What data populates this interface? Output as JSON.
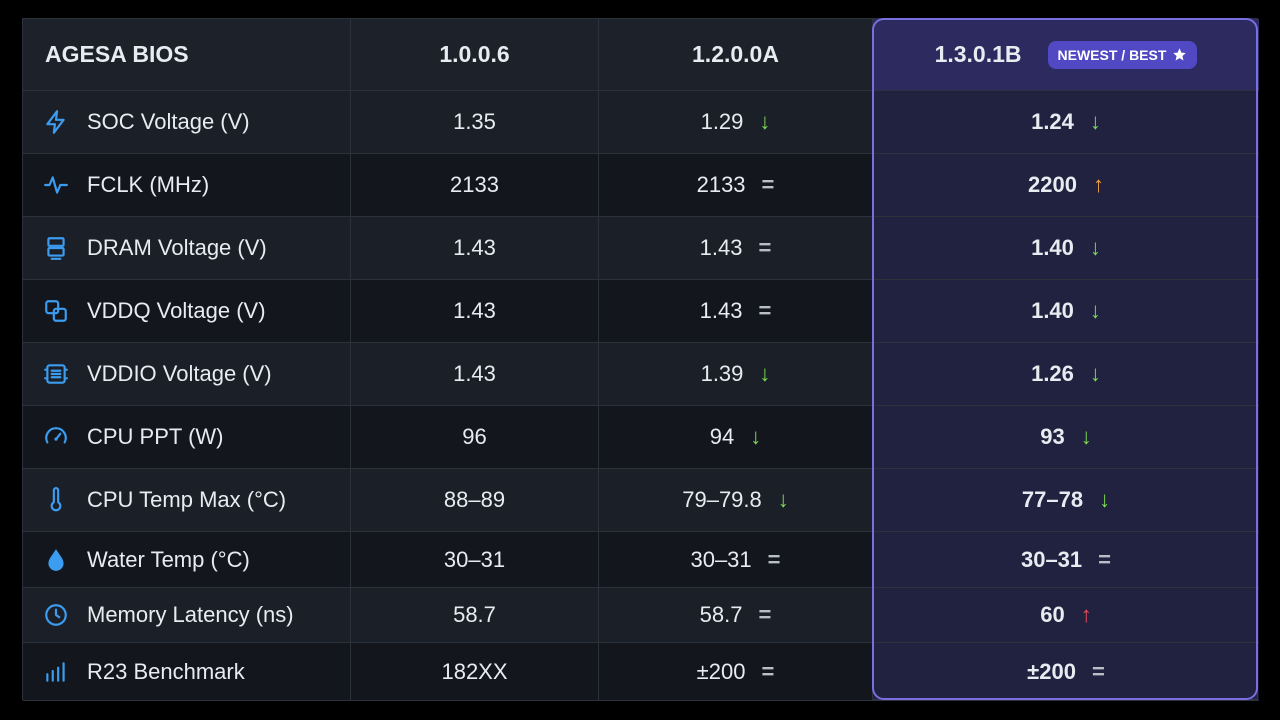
{
  "table": {
    "header": [
      "AGESA BIOS",
      "1.0.0.6",
      "1.2.0.0A",
      "1.3.0.1B"
    ],
    "badge": "NEWEST / BEST",
    "rows": [
      {
        "label": "SOC Voltage (V)",
        "cells": [
          {
            "value": "1.35"
          },
          {
            "value": "1.29",
            "trend": "↓",
            "trend_color": "#7ed957"
          },
          {
            "value": "1.24",
            "trend": "↓",
            "trend_color": "#7ed957"
          }
        ]
      },
      {
        "label": "FCLK (MHz)",
        "cells": [
          {
            "value": "2133"
          },
          {
            "value": "2133",
            "trend": "=",
            "trend_color": "#b9bec7"
          },
          {
            "value": "2200",
            "trend": "↑",
            "trend_color": "#f5a03c"
          }
        ]
      },
      {
        "label": "DRAM Voltage (V)",
        "cells": [
          {
            "value": "1.43"
          },
          {
            "value": "1.43",
            "trend": "=",
            "trend_color": "#b9bec7"
          },
          {
            "value": "1.40",
            "trend": "↓",
            "trend_color": "#7ed957"
          }
        ]
      },
      {
        "label": "VDDQ Voltage (V)",
        "cells": [
          {
            "value": "1.43"
          },
          {
            "value": "1.43",
            "trend": "=",
            "trend_color": "#b9bec7"
          },
          {
            "value": "1.40",
            "trend": "↓",
            "trend_color": "#7ed957"
          }
        ]
      },
      {
        "label": "VDDIO Voltage (V)",
        "cells": [
          {
            "value": "1.43"
          },
          {
            "value": "1.39",
            "trend": "↓",
            "trend_color": "#7ed957"
          },
          {
            "value": "1.26",
            "trend": "↓",
            "trend_color": "#7ed957"
          }
        ]
      },
      {
        "label": "CPU PPT (W)",
        "cells": [
          {
            "value": "96"
          },
          {
            "value": "94",
            "trend": "↓",
            "trend_color": "#7ed957"
          },
          {
            "value": "93",
            "trend": "↓",
            "trend_color": "#7ed957"
          }
        ]
      },
      {
        "label": "CPU Temp Max (°C)",
        "cells": [
          {
            "value": "88–89"
          },
          {
            "value": "79–79.8",
            "trend": "↓",
            "trend_color": "#7ed957"
          },
          {
            "value": "77–78",
            "trend": "↓",
            "trend_color": "#7ed957"
          }
        ]
      },
      {
        "label": "Water Temp (°C)",
        "cells": [
          {
            "value": "30–31"
          },
          {
            "value": "30–31",
            "trend": "=",
            "trend_color": "#b9bec7"
          },
          {
            "value": "30–31",
            "trend": "=",
            "trend_color": "#b9bec7"
          }
        ]
      },
      {
        "label": "Memory Latency (ns)",
        "cells": [
          {
            "value": "58.7"
          },
          {
            "value": "58.7",
            "trend": "=",
            "trend_color": "#b9bec7"
          },
          {
            "value": "60",
            "trend": "↑",
            "trend_color": "#ef4b5c"
          }
        ]
      },
      {
        "label": "R23 Benchmark",
        "cells": [
          {
            "value": "182XX"
          },
          {
            "value": "±200",
            "trend": "=",
            "trend_color": "#b9bec7"
          },
          {
            "value": "±200",
            "trend": "=",
            "trend_color": "#b9bec7"
          }
        ]
      }
    ]
  }
}
